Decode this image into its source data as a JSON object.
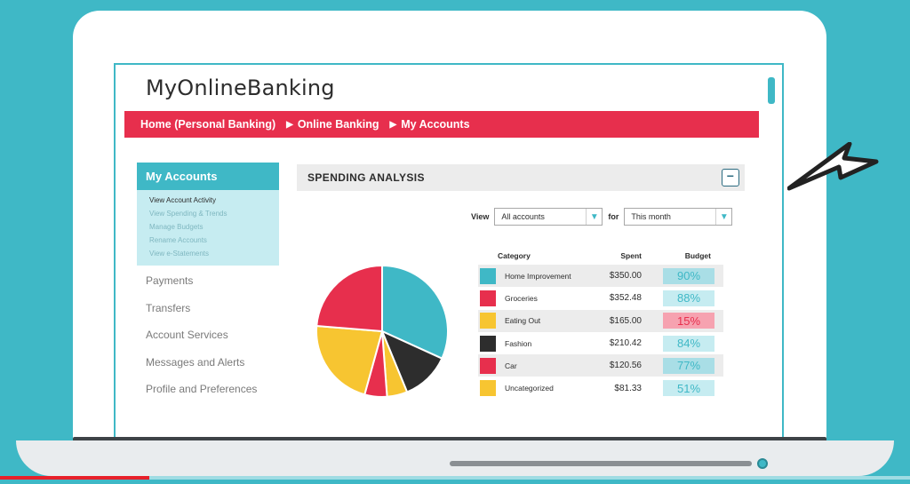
{
  "site": {
    "brand": "MyOnlineBanking"
  },
  "breadcrumb": {
    "items": [
      "Home (Personal Banking)",
      "Online Banking",
      "My Accounts"
    ]
  },
  "sidebar": {
    "heading": "My Accounts",
    "sub_items": [
      "View Account Activity",
      "View Spending & Trends",
      "Manage Budgets",
      "Rename Accounts",
      "View e-Statements"
    ],
    "links": [
      "Payments",
      "Transfers",
      "Account Services",
      "Messages and Alerts",
      "Profile and Preferences"
    ]
  },
  "panel": {
    "title": "SPENDING ANALYSIS",
    "collapse_symbol": "−"
  },
  "filters": {
    "view_label": "View",
    "account_value": "All accounts",
    "for_label": "for",
    "period_value": "This month"
  },
  "table": {
    "headers": {
      "category": "Category",
      "spent": "Spent",
      "budget": "Budget"
    },
    "rows": [
      {
        "category": "Home Improvement",
        "spent": "$350.00",
        "budget": "90%",
        "swatch": "#3fb8c6",
        "badge_bg": "#a9dee6"
      },
      {
        "category": "Groceries",
        "spent": "$352.48",
        "budget": "88%",
        "swatch": "#e72f4d",
        "badge_bg": "#c6ecf1"
      },
      {
        "category": "Eating Out",
        "spent": "$165.00",
        "budget": "15%",
        "swatch": "#f7c531",
        "badge_bg": "#f6a2b0"
      },
      {
        "category": "Fashion",
        "spent": "$210.42",
        "budget": "84%",
        "swatch": "#2d2d2d",
        "badge_bg": "#c6ecf1"
      },
      {
        "category": "Car",
        "spent": "$120.56",
        "budget": "77%",
        "swatch": "#e72f4d",
        "badge_bg": "#a9dee6"
      },
      {
        "category": "Uncategorized",
        "spent": "$81.33",
        "budget": "51%",
        "swatch": "#f7c531",
        "badge_bg": "#c6ecf1"
      }
    ]
  },
  "pie": {
    "slices": [
      {
        "name": "Home Improvement",
        "percent": 31.8,
        "color": "#3fb8c6"
      },
      {
        "name": "Fashion",
        "percent": 12.0,
        "color": "#2d2d2d"
      },
      {
        "name": "Eating Out",
        "percent": 5.0,
        "color": "#f7c531"
      },
      {
        "name": "Car",
        "percent": 5.5,
        "color": "#e72f4d"
      },
      {
        "name": "Uncategorized",
        "percent": 22.0,
        "color": "#f7c531"
      },
      {
        "name": "Groceries",
        "percent": 23.7,
        "color": "#e72f4d"
      }
    ]
  },
  "video": {
    "progress": 0.164
  }
}
